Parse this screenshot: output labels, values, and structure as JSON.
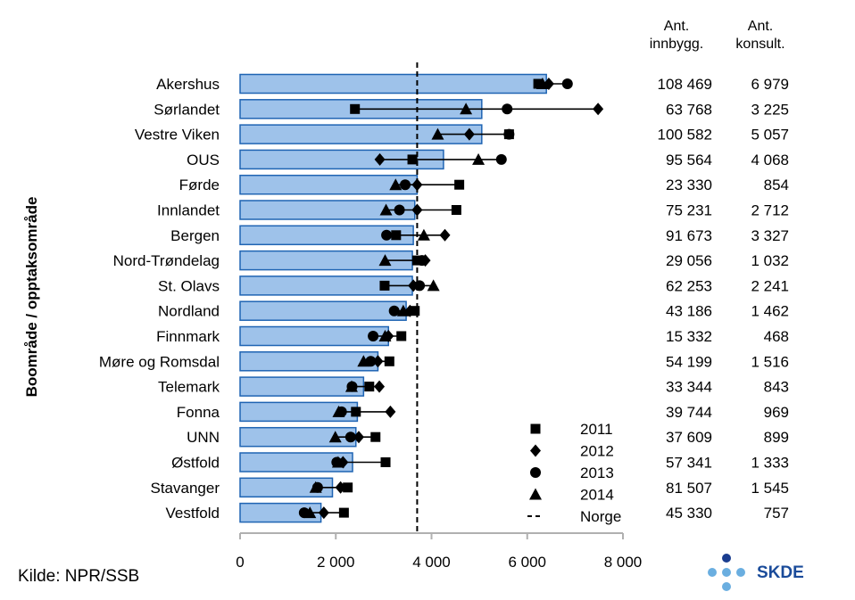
{
  "chart_data": {
    "type": "bar",
    "ylabel": "Boområde / opptaksområde",
    "xlim": [
      0,
      8000
    ],
    "xticks": [
      0,
      2000,
      4000,
      6000,
      8000
    ],
    "xtick_labels": [
      "0",
      "2 000",
      "4 000",
      "6 000",
      "8 000"
    ],
    "reference_line": {
      "name": "Norge",
      "value": 3700
    },
    "columns": [
      {
        "key": "innbygg",
        "header": [
          "Ant.",
          "innbygg."
        ]
      },
      {
        "key": "konsult",
        "header": [
          "Ant.",
          "konsult."
        ]
      }
    ],
    "legend": {
      "placement": "bottom-right",
      "entries": [
        {
          "key": "y2011",
          "label": "2011",
          "marker": "square"
        },
        {
          "key": "y2012",
          "label": "2012",
          "marker": "diamond"
        },
        {
          "key": "y2013",
          "label": "2013",
          "marker": "circle"
        },
        {
          "key": "y2014",
          "label": "2014",
          "marker": "triangle"
        },
        {
          "key": "norge",
          "label": "Norge",
          "marker": "dash"
        }
      ]
    },
    "colors": {
      "bar_fill": "#9ec2ea",
      "bar_edge": "#1f64b3",
      "axis": "#b0b0b0",
      "marker": "#000000"
    },
    "categories": [
      "Akershus",
      "Sørlandet",
      "Vestre Viken",
      "OUS",
      "Førde",
      "Innlandet",
      "Bergen",
      "Nord-Trøndelag",
      "St. Olavs",
      "Nordland",
      "Finnmark",
      "Møre og Romsdal",
      "Telemark",
      "Fonna",
      "UNN",
      "Østfold",
      "Stavanger",
      "Vestfold"
    ],
    "bar_values": [
      6400,
      5050,
      5050,
      4250,
      3700,
      3650,
      3620,
      3600,
      3600,
      3470,
      3100,
      2880,
      2580,
      2450,
      2420,
      2350,
      1930,
      1690
    ],
    "series": [
      {
        "name": "2011",
        "marker": "square",
        "values": [
          6230,
          2400,
          5620,
          3600,
          4580,
          4520,
          3260,
          3700,
          3020,
          3650,
          3370,
          3120,
          2700,
          2420,
          2830,
          3040,
          2250,
          2170
        ]
      },
      {
        "name": "2012",
        "marker": "diamond",
        "values": [
          6450,
          7480,
          4790,
          2920,
          3700,
          3700,
          4280,
          3870,
          3620,
          3550,
          3100,
          2880,
          2910,
          3140,
          2480,
          2150,
          2100,
          1750
        ]
      },
      {
        "name": "2013",
        "marker": "circle",
        "values": [
          6840,
          5580,
          5620,
          5460,
          3450,
          3330,
          3060,
          3800,
          3750,
          3220,
          2780,
          2730,
          2340,
          2120,
          2310,
          2020,
          1620,
          1340
        ]
      },
      {
        "name": "2014",
        "marker": "triangle",
        "values": [
          6320,
          4720,
          4130,
          4980,
          3250,
          3050,
          3840,
          3030,
          4040,
          3410,
          3030,
          2580,
          2330,
          2060,
          1990,
          2050,
          1580,
          1460
        ]
      }
    ],
    "innbygg": [
      "108 469",
      "63 768",
      "100 582",
      "95 564",
      "23 330",
      "75 231",
      "91 673",
      "29 056",
      "62 253",
      "43 186",
      "15 332",
      "54 199",
      "33 344",
      "39 744",
      "37 609",
      "57 341",
      "81 507",
      "45 330"
    ],
    "konsult": [
      "6 979",
      "3 225",
      "5 057",
      "4 068",
      "854",
      "2 712",
      "3 327",
      "1 032",
      "2 241",
      "1 462",
      "468",
      "1 516",
      "843",
      "969",
      "899",
      "1 333",
      "1 545",
      "757"
    ]
  },
  "source": "Kilde: NPR/SSB",
  "logo": {
    "text": "SKDE",
    "color": "#1a4b9a",
    "dot_dark": "#1a3d8f",
    "dot_light": "#6aaee0"
  }
}
